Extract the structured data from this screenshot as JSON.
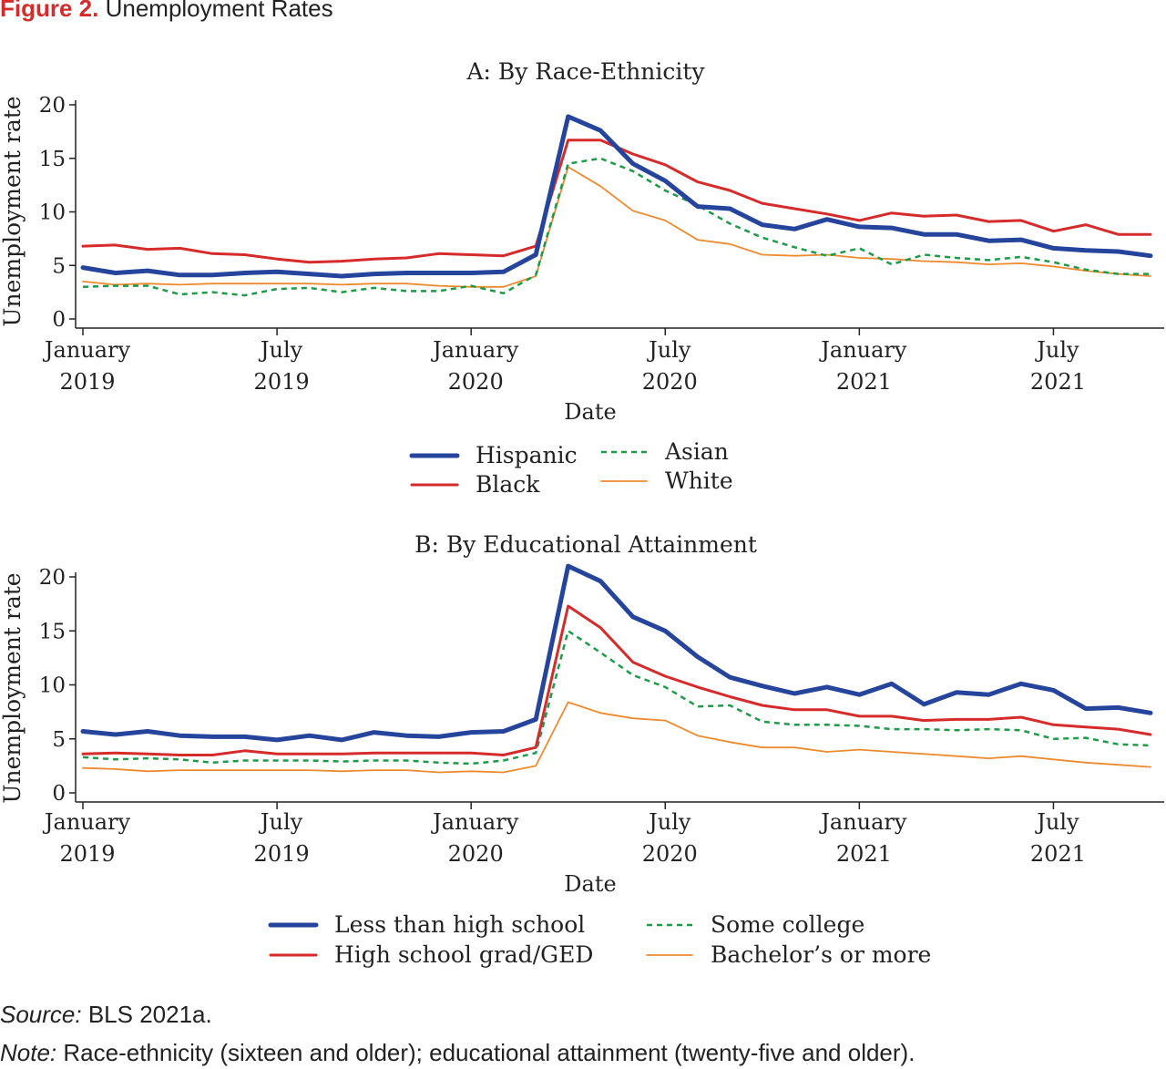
{
  "figure": {
    "label": "Figure 2.",
    "title": "Unemployment Rates"
  },
  "source": {
    "key": "Source:",
    "text": "BLS 2021a."
  },
  "note": {
    "key": "Note:",
    "text": "Race-ethnicity (sixteen and older); educational attainment (twenty-five and older)."
  },
  "chart_data": [
    {
      "type": "line",
      "title": "A: By Race-Ethnicity",
      "xlabel": "Date",
      "ylabel": "Unemployment rate",
      "ylim": [
        0,
        20
      ],
      "yticks": [
        0,
        5,
        10,
        15,
        20
      ],
      "xticks": [
        {
          "month": "2019-01",
          "line1": "January",
          "line2": "2019"
        },
        {
          "month": "2019-07",
          "line1": "July",
          "line2": "2019"
        },
        {
          "month": "2020-01",
          "line1": "January",
          "line2": "2020"
        },
        {
          "month": "2020-07",
          "line1": "July",
          "line2": "2020"
        },
        {
          "month": "2021-01",
          "line1": "January",
          "line2": "2021"
        },
        {
          "month": "2021-07",
          "line1": "July",
          "line2": "2021"
        }
      ],
      "x": [
        "2019-01",
        "2019-02",
        "2019-03",
        "2019-04",
        "2019-05",
        "2019-06",
        "2019-07",
        "2019-08",
        "2019-09",
        "2019-10",
        "2019-11",
        "2019-12",
        "2020-01",
        "2020-02",
        "2020-03",
        "2020-04",
        "2020-05",
        "2020-06",
        "2020-07",
        "2020-08",
        "2020-09",
        "2020-10",
        "2020-11",
        "2020-12",
        "2021-01",
        "2021-02",
        "2021-03",
        "2021-04",
        "2021-05",
        "2021-06",
        "2021-07",
        "2021-08",
        "2021-09",
        "2021-10"
      ],
      "legend": {
        "placement": "bottom",
        "columns": 2
      },
      "series": [
        {
          "name": "Hispanic",
          "color": "#25449b",
          "style": "solid-thick",
          "values": [
            4.8,
            4.3,
            4.5,
            4.1,
            4.1,
            4.3,
            4.4,
            4.2,
            4.0,
            4.2,
            4.3,
            4.3,
            4.3,
            4.4,
            6.0,
            18.9,
            17.6,
            14.5,
            12.9,
            10.5,
            10.3,
            8.8,
            8.4,
            9.3,
            8.6,
            8.5,
            7.9,
            7.9,
            7.3,
            7.4,
            6.6,
            6.4,
            6.3,
            5.9
          ]
        },
        {
          "name": "Black",
          "color": "#d62b2b",
          "style": "solid",
          "values": [
            6.8,
            6.9,
            6.5,
            6.6,
            6.1,
            6.0,
            5.6,
            5.3,
            5.4,
            5.6,
            5.7,
            6.1,
            6.0,
            5.9,
            6.8,
            16.7,
            16.7,
            15.4,
            14.4,
            12.8,
            12.0,
            10.8,
            10.3,
            9.8,
            9.2,
            9.9,
            9.6,
            9.7,
            9.1,
            9.2,
            8.2,
            8.8,
            7.9,
            7.9
          ]
        },
        {
          "name": "Asian",
          "color": "#1e9b48",
          "style": "dashed",
          "values": [
            3.0,
            3.1,
            3.1,
            2.3,
            2.5,
            2.2,
            2.8,
            2.9,
            2.5,
            2.9,
            2.6,
            2.6,
            3.1,
            2.4,
            4.1,
            14.5,
            15.0,
            13.8,
            12.0,
            10.6,
            8.9,
            7.6,
            6.7,
            5.9,
            6.6,
            5.1,
            6.0,
            5.7,
            5.5,
            5.8,
            5.3,
            4.6,
            4.2,
            4.2
          ]
        },
        {
          "name": "White",
          "color": "#ee8a2e",
          "style": "solid-thin",
          "values": [
            3.5,
            3.2,
            3.3,
            3.2,
            3.3,
            3.3,
            3.3,
            3.3,
            3.2,
            3.3,
            3.3,
            3.1,
            3.0,
            3.0,
            4.0,
            14.2,
            12.4,
            10.1,
            9.2,
            7.4,
            7.0,
            6.0,
            5.9,
            6.0,
            5.7,
            5.6,
            5.4,
            5.3,
            5.1,
            5.2,
            4.9,
            4.5,
            4.2,
            4.0
          ]
        }
      ]
    },
    {
      "type": "line",
      "title": "B: By Educational Attainment",
      "xlabel": "Date",
      "ylabel": "Unemployment rate",
      "ylim": [
        0,
        20
      ],
      "yticks": [
        0,
        5,
        10,
        15,
        20
      ],
      "xticks": [
        {
          "month": "2019-01",
          "line1": "January",
          "line2": "2019"
        },
        {
          "month": "2019-07",
          "line1": "July",
          "line2": "2019"
        },
        {
          "month": "2020-01",
          "line1": "January",
          "line2": "2020"
        },
        {
          "month": "2020-07",
          "line1": "July",
          "line2": "2020"
        },
        {
          "month": "2021-01",
          "line1": "January",
          "line2": "2021"
        },
        {
          "month": "2021-07",
          "line1": "July",
          "line2": "2021"
        }
      ],
      "x": [
        "2019-01",
        "2019-02",
        "2019-03",
        "2019-04",
        "2019-05",
        "2019-06",
        "2019-07",
        "2019-08",
        "2019-09",
        "2019-10",
        "2019-11",
        "2019-12",
        "2020-01",
        "2020-02",
        "2020-03",
        "2020-04",
        "2020-05",
        "2020-06",
        "2020-07",
        "2020-08",
        "2020-09",
        "2020-10",
        "2020-11",
        "2020-12",
        "2021-01",
        "2021-02",
        "2021-03",
        "2021-04",
        "2021-05",
        "2021-06",
        "2021-07",
        "2021-08",
        "2021-09",
        "2021-10"
      ],
      "legend": {
        "placement": "bottom",
        "columns": 2
      },
      "series": [
        {
          "name": "Less than high school",
          "color": "#25449b",
          "style": "solid-thick",
          "values": [
            5.7,
            5.4,
            5.7,
            5.3,
            5.2,
            5.2,
            4.9,
            5.3,
            4.9,
            5.6,
            5.3,
            5.2,
            5.6,
            5.7,
            6.8,
            21.0,
            19.6,
            16.3,
            15.0,
            12.6,
            10.7,
            9.9,
            9.2,
            9.8,
            9.1,
            10.1,
            8.2,
            9.3,
            9.1,
            10.1,
            9.5,
            7.8,
            7.9,
            7.4
          ]
        },
        {
          "name": "High school grad/GED",
          "color": "#d62b2b",
          "style": "solid",
          "values": [
            3.6,
            3.7,
            3.6,
            3.5,
            3.5,
            3.9,
            3.6,
            3.6,
            3.6,
            3.7,
            3.7,
            3.7,
            3.7,
            3.5,
            4.2,
            17.3,
            15.3,
            12.1,
            10.8,
            9.8,
            8.9,
            8.1,
            7.7,
            7.7,
            7.1,
            7.1,
            6.7,
            6.8,
            6.8,
            7.0,
            6.3,
            6.1,
            5.9,
            5.4
          ]
        },
        {
          "name": "Some college",
          "color": "#1e9b48",
          "style": "dashed",
          "values": [
            3.3,
            3.1,
            3.2,
            3.1,
            2.8,
            3.0,
            3.0,
            3.0,
            2.9,
            3.0,
            3.0,
            2.8,
            2.7,
            3.0,
            3.7,
            15.0,
            13.0,
            10.9,
            9.8,
            8.0,
            8.1,
            6.6,
            6.3,
            6.3,
            6.2,
            5.9,
            5.9,
            5.8,
            5.9,
            5.8,
            5.0,
            5.1,
            4.5,
            4.4
          ]
        },
        {
          "name": "Bachelor’s or more",
          "color": "#ee8a2e",
          "style": "solid-thin",
          "values": [
            2.3,
            2.2,
            2.0,
            2.1,
            2.1,
            2.1,
            2.1,
            2.1,
            2.0,
            2.1,
            2.1,
            1.9,
            2.0,
            1.9,
            2.5,
            8.4,
            7.4,
            6.9,
            6.7,
            5.3,
            4.7,
            4.2,
            4.2,
            3.8,
            4.0,
            3.8,
            3.6,
            3.4,
            3.2,
            3.4,
            3.1,
            2.8,
            2.6,
            2.4
          ]
        }
      ]
    }
  ]
}
